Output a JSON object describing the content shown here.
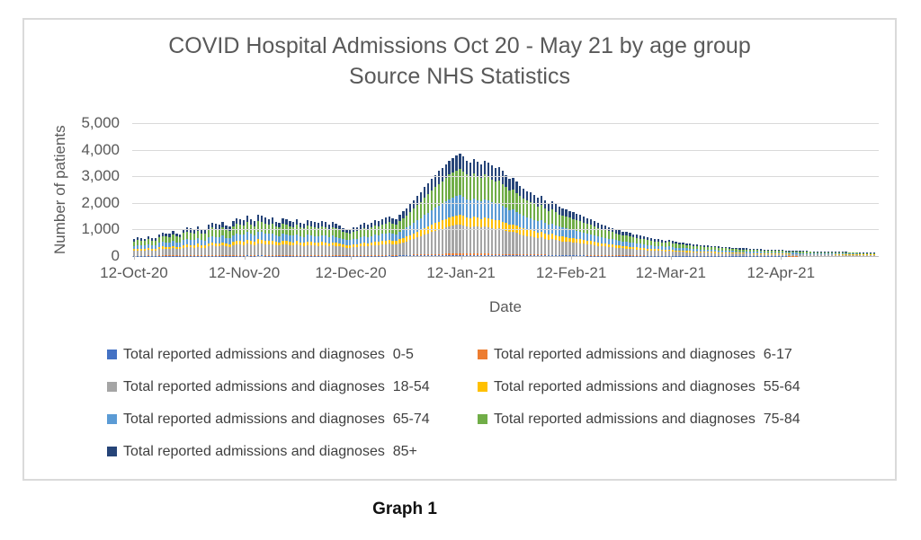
{
  "chart": {
    "title": "COVID Hospital Admissions Oct 20 - May 21 by age group",
    "subtitle": "Source NHS Statistics",
    "y_axis_title": "Number of patients",
    "x_axis_title": "Date"
  },
  "caption": "Graph 1",
  "colors": {
    "gridline": "#d9d9d9",
    "axis_line": "#bfbfbf",
    "text_gray": "#595959"
  },
  "legend": {
    "items": [
      {
        "label": "Total reported admissions and diagnoses  0-5",
        "color": "#4472C4"
      },
      {
        "label": "Total reported admissions and diagnoses  6-17",
        "color": "#ED7D31"
      },
      {
        "label": "Total reported admissions and diagnoses  18-54",
        "color": "#A5A5A5"
      },
      {
        "label": "Total reported admissions and diagnoses  55-64",
        "color": "#FFC000"
      },
      {
        "label": "Total reported admissions and diagnoses  65-74",
        "color": "#5B9BD5"
      },
      {
        "label": "Total reported admissions and diagnoses  75-84",
        "color": "#70AD47"
      },
      {
        "label": "Total reported admissions and diagnoses  85+",
        "color": "#264478"
      }
    ]
  },
  "chart_data": {
    "type": "bar",
    "stacked": true,
    "title": "COVID Hospital Admissions Oct 20 - May 21 by age group",
    "subtitle": "Source NHS Statistics",
    "xlabel": "Date",
    "ylabel": "Number of patients",
    "ylim": [
      0,
      5000
    ],
    "grid": true,
    "legend_position": "bottom",
    "y_tick_labels": [
      "5,000",
      "4,000",
      "3,000",
      "2,000",
      "1,000",
      "0"
    ],
    "x_tick_labels": [
      "12-Oct-20",
      "12-Nov-20",
      "12-Dec-20",
      "12-Jan-21",
      "12-Feb-21",
      "12-Mar-21",
      "12-Apr-21"
    ],
    "x_tick_day_index": [
      0,
      31,
      61,
      92,
      123,
      151,
      182
    ],
    "x_start": "12-Oct-20",
    "x_unit": "day",
    "n_days": 210,
    "series": [
      {
        "name": "Total reported admissions and diagnoses  0-5",
        "color": "#4472C4",
        "share_of_total": 0.012
      },
      {
        "name": "Total reported admissions and diagnoses  6-17",
        "color": "#ED7D31",
        "share_of_total": 0.013
      },
      {
        "name": "Total reported admissions and diagnoses  18-54",
        "color": "#A5A5A5",
        "share_of_total": 0.285
      },
      {
        "name": "Total reported admissions and diagnoses  55-64",
        "color": "#FFC000",
        "share_of_total": 0.095
      },
      {
        "name": "Total reported admissions and diagnoses  65-74",
        "color": "#5B9BD5",
        "share_of_total": 0.19
      },
      {
        "name": "Total reported admissions and diagnoses  75-84",
        "color": "#70AD47",
        "share_of_total": 0.255
      },
      {
        "name": "Total reported admissions and diagnoses  85+",
        "color": "#264478",
        "share_of_total": 0.15
      }
    ],
    "daily_total_admissions": [
      640,
      700,
      680,
      660,
      760,
      690,
      670,
      830,
      890,
      860,
      840,
      950,
      860,
      830,
      1020,
      1080,
      1040,
      1010,
      1130,
      1010,
      990,
      1200,
      1260,
      1210,
      1170,
      1290,
      1150,
      1110,
      1330,
      1430,
      1390,
      1360,
      1530,
      1400,
      1310,
      1550,
      1520,
      1440,
      1400,
      1450,
      1300,
      1260,
      1420,
      1390,
      1330,
      1290,
      1380,
      1260,
      1220,
      1340,
      1310,
      1270,
      1240,
      1330,
      1280,
      1200,
      1280,
      1220,
      1160,
      1060,
      1020,
      1000,
      1080,
      1100,
      1180,
      1240,
      1200,
      1260,
      1350,
      1310,
      1400,
      1450,
      1500,
      1420,
      1380,
      1560,
      1680,
      1800,
      1950,
      2100,
      2250,
      2400,
      2600,
      2750,
      2900,
      3050,
      3200,
      3300,
      3450,
      3600,
      3700,
      3780,
      3870,
      3750,
      3600,
      3500,
      3650,
      3550,
      3450,
      3600,
      3520,
      3400,
      3300,
      3350,
      3200,
      3050,
      2900,
      2950,
      2800,
      2650,
      2550,
      2450,
      2400,
      2300,
      2200,
      2250,
      2100,
      2000,
      2050,
      1950,
      1850,
      1800,
      1750,
      1700,
      1650,
      1600,
      1550,
      1480,
      1420,
      1380,
      1320,
      1250,
      1200,
      1160,
      1100,
      1060,
      1010,
      970,
      930,
      900,
      870,
      830,
      800,
      770,
      740,
      700,
      680,
      650,
      630,
      610,
      590,
      620,
      560,
      540,
      520,
      500,
      490,
      470,
      450,
      440,
      420,
      410,
      400,
      390,
      380,
      360,
      350,
      340,
      330,
      320,
      310,
      300,
      295,
      290,
      280,
      275,
      265,
      260,
      255,
      250,
      240,
      235,
      230,
      225,
      220,
      215,
      210,
      205,
      200,
      195,
      190,
      185,
      180,
      178,
      175,
      172,
      170,
      168,
      165,
      162,
      160,
      155,
      150,
      148,
      145,
      140,
      138,
      135,
      132,
      130
    ]
  }
}
